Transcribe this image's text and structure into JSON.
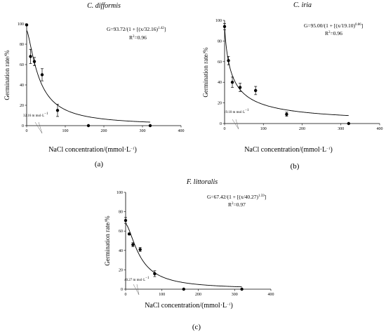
{
  "chart_data": [
    {
      "type": "scatter",
      "panel_label": "(a)",
      "title": "C. difformis",
      "xlabel": "NaCl concentration/(mmol·L",
      "xlabel_sup": "−1",
      "xlabel_end": ")",
      "ylabel": "Germination rate/%",
      "xlim": [
        0,
        400
      ],
      "ylim": [
        0,
        100
      ],
      "xticks": [
        "0",
        "100",
        "200",
        "300",
        "400"
      ],
      "yticks": [
        "0",
        "20",
        "40",
        "60",
        "80",
        "100"
      ],
      "equation": "G=93.72/(1 + [(x/32.16)",
      "equation_exp": "1.42",
      "equation_end": "]",
      "r2": "R",
      "r2_exp": "2",
      "r2_val": "=0.96",
      "annotation": "32.16 m mol·L",
      "annotation_sup": "−1",
      "fit": {
        "a": 93.72,
        "x0": 32.16,
        "b": 1.42
      },
      "x": [
        0,
        10,
        20,
        40,
        80,
        160,
        320
      ],
      "y": [
        99,
        68,
        63,
        50,
        15,
        0,
        0
      ],
      "err": [
        0,
        7,
        4,
        6,
        6,
        0,
        0
      ]
    },
    {
      "type": "scatter",
      "panel_label": "(b)",
      "title": "C. iria",
      "xlabel": "NaCl concentration/(mmol·L",
      "xlabel_sup": "−1",
      "xlabel_end": ")",
      "ylabel": "Germination rate/%",
      "xlim": [
        0,
        400
      ],
      "ylim": [
        0,
        100
      ],
      "xticks": [
        "0",
        "100",
        "200",
        "300",
        "400"
      ],
      "yticks": [
        "0",
        "20",
        "40",
        "60",
        "80",
        "100"
      ],
      "equation": "G=95.00/(1 + [(x/19.10)",
      "equation_exp": "0.86",
      "equation_end": "]",
      "r2": "R",
      "r2_exp": "2",
      "r2_val": "=0.96",
      "annotation": "19.10 m mol·L",
      "annotation_sup": "−1",
      "fit": {
        "a": 95.0,
        "x0": 19.1,
        "b": 0.86
      },
      "x": [
        0,
        10,
        20,
        40,
        80,
        160,
        320
      ],
      "y": [
        94,
        61,
        40,
        35,
        32,
        9,
        0
      ],
      "err": [
        3,
        4,
        5,
        4,
        4,
        2,
        0
      ]
    },
    {
      "type": "scatter",
      "panel_label": "(c)",
      "title": "F. littoralis",
      "xlabel": "NaCl concentration/(mmol·L",
      "xlabel_sup": "−1",
      "xlabel_end": ")",
      "ylabel": "Germination rate/%",
      "xlim": [
        0,
        400
      ],
      "ylim": [
        0,
        100
      ],
      "xticks": [
        "0",
        "100",
        "200",
        "300",
        "400"
      ],
      "yticks": [
        "0",
        "20",
        "40",
        "60",
        "80",
        "100"
      ],
      "equation": "G=67.42/(1 + [(x/40.27)",
      "equation_exp": "1.59",
      "equation_end": "]",
      "r2": "R",
      "r2_exp": "2",
      "r2_val": "=0.97",
      "annotation": "40.27 m mol·L",
      "annotation_sup": "−1",
      "fit": {
        "a": 67.42,
        "x0": 40.27,
        "b": 1.59
      },
      "x": [
        0,
        10,
        20,
        40,
        80,
        160,
        320
      ],
      "y": [
        71,
        57,
        46,
        41,
        16,
        0,
        0
      ],
      "err": [
        3,
        1,
        2,
        2,
        3,
        0,
        0
      ]
    }
  ]
}
